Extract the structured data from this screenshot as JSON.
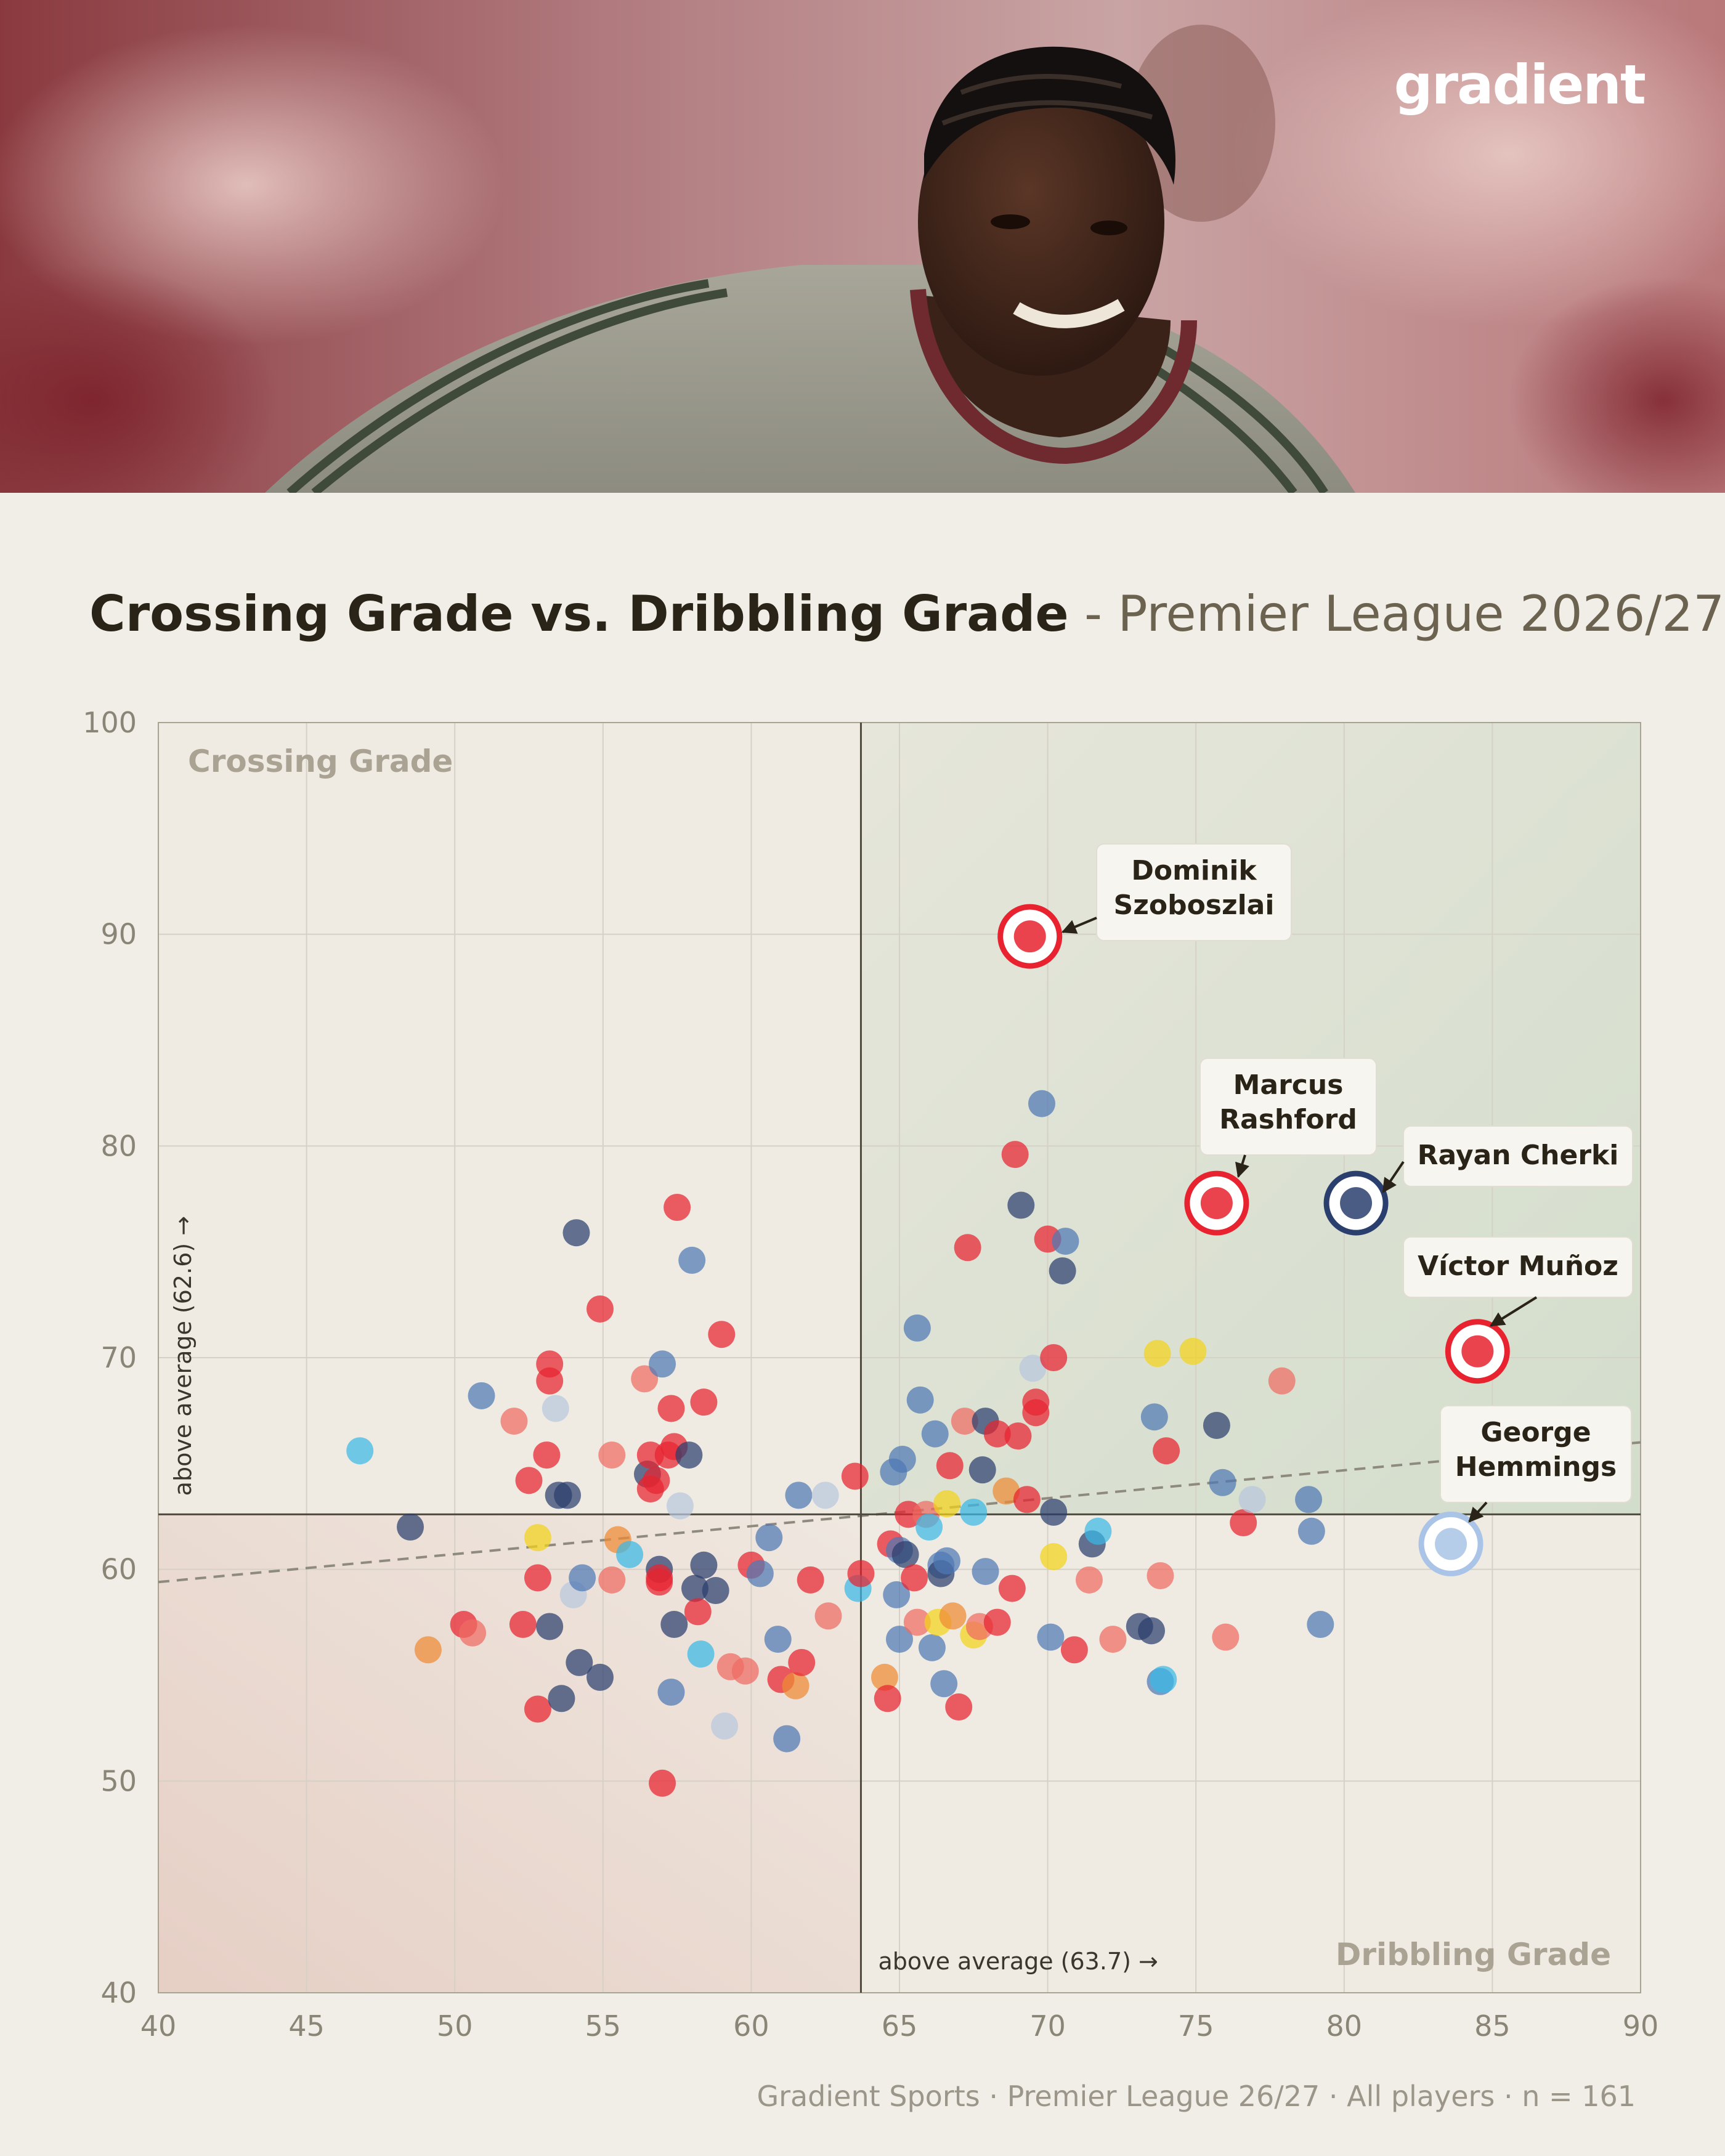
{
  "brand": {
    "logo_text": "gradient"
  },
  "header": {
    "title_main": "Crossing Grade vs. Dribbling Grade",
    "title_sub": " - Premier League 2026/27"
  },
  "footer": {
    "source": "Gradient Sports · Premier League 26/27 · All players · n = 161"
  },
  "colors": {
    "background": "#f1eee7",
    "accent_quadrant": "#d9e1d0",
    "low_quadrant": "#ead6cc",
    "red": "#e8222f",
    "navy": "#2b3f6e",
    "blue": "#4f79b4",
    "light_blue": "#b8c8de",
    "cyan": "#3ab8e6",
    "yellow": "#f2d21b",
    "orange": "#ef8a34",
    "salmon": "#ee6b62"
  },
  "chart_data": {
    "type": "scatter",
    "xlabel": "Dribbling Grade",
    "ylabel": "Crossing Grade",
    "xlim": [
      40,
      90
    ],
    "ylim": [
      40,
      100
    ],
    "xticks": [
      "40",
      "45",
      "50",
      "55",
      "60",
      "65",
      "70",
      "75",
      "80",
      "85",
      "90"
    ],
    "yticks": [
      "40",
      "50",
      "60",
      "70",
      "80",
      "90",
      "100"
    ],
    "grid": true,
    "x_average": {
      "value": 63.7,
      "label": "above average (63.7) →"
    },
    "y_average": {
      "value": 62.6,
      "label": "above average (62.6) →"
    },
    "trend_line": {
      "style": "dashed",
      "from": [
        40,
        59.4
      ],
      "to": [
        90,
        66.0
      ]
    },
    "highlighted": [
      {
        "name": "Dominik Szoboszlai",
        "label_lines": [
          "Dominik",
          "Szoboszlai"
        ],
        "x": 69.4,
        "y": 89.9,
        "badge": "liverpool-badge",
        "badge_color": "#e8222f"
      },
      {
        "name": "Marcus Rashford",
        "label_lines": [
          "Marcus",
          "Rashford"
        ],
        "x": 75.7,
        "y": 77.3,
        "badge": "man-united-badge",
        "badge_color": "#e8222f"
      },
      {
        "name": "Rayan Cherki",
        "label_lines": [
          "Rayan Cherki"
        ],
        "x": 80.4,
        "y": 77.3,
        "badge": "man-city-badge",
        "badge_color": "#2b3f6e"
      },
      {
        "name": "Víctor Muñoz",
        "label_lines": [
          "Víctor Muñoz"
        ],
        "x": 84.5,
        "y": 70.3,
        "badge": "liverpool-badge",
        "badge_color": "#e8222f"
      },
      {
        "name": "George Hemmings",
        "label_lines": [
          "George",
          "Hemmings"
        ],
        "x": 83.6,
        "y": 61.2,
        "badge": "aston-villa-badge",
        "badge_color": "#a9c4e6"
      }
    ],
    "points": [
      {
        "x": 46.8,
        "y": 65.6,
        "c": "cyan"
      },
      {
        "x": 48.5,
        "y": 62.0,
        "c": "navy"
      },
      {
        "x": 49.1,
        "y": 56.2,
        "c": "orange"
      },
      {
        "x": 50.3,
        "y": 57.4,
        "c": "red"
      },
      {
        "x": 50.6,
        "y": 57.0,
        "c": "salmon"
      },
      {
        "x": 50.9,
        "y": 68.2,
        "c": "blue"
      },
      {
        "x": 52.0,
        "y": 67.0,
        "c": "salmon"
      },
      {
        "x": 52.3,
        "y": 57.4,
        "c": "red"
      },
      {
        "x": 52.5,
        "y": 64.2,
        "c": "red"
      },
      {
        "x": 52.8,
        "y": 59.6,
        "c": "red"
      },
      {
        "x": 52.8,
        "y": 61.5,
        "c": "yellow"
      },
      {
        "x": 52.8,
        "y": 53.4,
        "c": "red"
      },
      {
        "x": 53.1,
        "y": 65.4,
        "c": "red"
      },
      {
        "x": 53.2,
        "y": 69.7,
        "c": "red"
      },
      {
        "x": 53.2,
        "y": 68.9,
        "c": "red"
      },
      {
        "x": 53.2,
        "y": 57.3,
        "c": "navy"
      },
      {
        "x": 53.4,
        "y": 67.6,
        "c": "light_blue"
      },
      {
        "x": 53.5,
        "y": 63.5,
        "c": "navy"
      },
      {
        "x": 53.6,
        "y": 53.9,
        "c": "navy"
      },
      {
        "x": 53.8,
        "y": 63.5,
        "c": "navy"
      },
      {
        "x": 54.0,
        "y": 58.8,
        "c": "light_blue"
      },
      {
        "x": 54.1,
        "y": 75.9,
        "c": "navy"
      },
      {
        "x": 54.2,
        "y": 55.6,
        "c": "navy"
      },
      {
        "x": 54.3,
        "y": 59.6,
        "c": "blue"
      },
      {
        "x": 54.9,
        "y": 54.9,
        "c": "navy"
      },
      {
        "x": 54.9,
        "y": 72.3,
        "c": "red"
      },
      {
        "x": 55.3,
        "y": 65.4,
        "c": "salmon"
      },
      {
        "x": 55.3,
        "y": 59.5,
        "c": "salmon"
      },
      {
        "x": 55.5,
        "y": 61.4,
        "c": "orange"
      },
      {
        "x": 55.9,
        "y": 60.7,
        "c": "cyan"
      },
      {
        "x": 56.4,
        "y": 69.0,
        "c": "salmon"
      },
      {
        "x": 56.5,
        "y": 64.5,
        "c": "navy"
      },
      {
        "x": 56.6,
        "y": 63.8,
        "c": "red"
      },
      {
        "x": 56.6,
        "y": 65.4,
        "c": "red"
      },
      {
        "x": 56.8,
        "y": 64.2,
        "c": "red"
      },
      {
        "x": 56.9,
        "y": 60.0,
        "c": "navy"
      },
      {
        "x": 56.9,
        "y": 59.6,
        "c": "red"
      },
      {
        "x": 56.9,
        "y": 59.4,
        "c": "red"
      },
      {
        "x": 57.0,
        "y": 69.7,
        "c": "blue"
      },
      {
        "x": 57.0,
        "y": 49.9,
        "c": "red"
      },
      {
        "x": 57.2,
        "y": 65.4,
        "c": "red"
      },
      {
        "x": 57.3,
        "y": 67.6,
        "c": "red"
      },
      {
        "x": 57.3,
        "y": 54.2,
        "c": "blue"
      },
      {
        "x": 57.4,
        "y": 57.4,
        "c": "navy"
      },
      {
        "x": 57.4,
        "y": 65.8,
        "c": "red"
      },
      {
        "x": 57.5,
        "y": 77.1,
        "c": "red"
      },
      {
        "x": 57.6,
        "y": 63.0,
        "c": "light_blue"
      },
      {
        "x": 57.9,
        "y": 65.4,
        "c": "navy"
      },
      {
        "x": 58.0,
        "y": 74.6,
        "c": "blue"
      },
      {
        "x": 58.1,
        "y": 59.1,
        "c": "navy"
      },
      {
        "x": 58.2,
        "y": 58.0,
        "c": "red"
      },
      {
        "x": 58.3,
        "y": 56.0,
        "c": "cyan"
      },
      {
        "x": 58.4,
        "y": 60.2,
        "c": "navy"
      },
      {
        "x": 58.4,
        "y": 67.9,
        "c": "red"
      },
      {
        "x": 58.8,
        "y": 59.0,
        "c": "navy"
      },
      {
        "x": 59.0,
        "y": 71.1,
        "c": "red"
      },
      {
        "x": 59.1,
        "y": 52.6,
        "c": "light_blue"
      },
      {
        "x": 59.3,
        "y": 55.4,
        "c": "salmon"
      },
      {
        "x": 59.8,
        "y": 55.2,
        "c": "salmon"
      },
      {
        "x": 60.0,
        "y": 60.2,
        "c": "red"
      },
      {
        "x": 60.3,
        "y": 59.8,
        "c": "blue"
      },
      {
        "x": 60.6,
        "y": 61.5,
        "c": "blue"
      },
      {
        "x": 60.9,
        "y": 56.7,
        "c": "blue"
      },
      {
        "x": 61.0,
        "y": 54.8,
        "c": "red"
      },
      {
        "x": 61.2,
        "y": 52.0,
        "c": "blue"
      },
      {
        "x": 61.5,
        "y": 54.5,
        "c": "orange"
      },
      {
        "x": 61.6,
        "y": 63.5,
        "c": "blue"
      },
      {
        "x": 61.7,
        "y": 55.6,
        "c": "red"
      },
      {
        "x": 62.0,
        "y": 59.5,
        "c": "red"
      },
      {
        "x": 62.5,
        "y": 63.5,
        "c": "light_blue"
      },
      {
        "x": 62.6,
        "y": 57.8,
        "c": "salmon"
      },
      {
        "x": 63.5,
        "y": 64.4,
        "c": "red"
      },
      {
        "x": 63.6,
        "y": 59.1,
        "c": "cyan"
      },
      {
        "x": 63.7,
        "y": 59.8,
        "c": "red"
      },
      {
        "x": 64.5,
        "y": 54.9,
        "c": "orange"
      },
      {
        "x": 64.6,
        "y": 53.9,
        "c": "red"
      },
      {
        "x": 64.7,
        "y": 61.2,
        "c": "red"
      },
      {
        "x": 64.8,
        "y": 64.6,
        "c": "blue"
      },
      {
        "x": 64.9,
        "y": 58.8,
        "c": "blue"
      },
      {
        "x": 65.0,
        "y": 60.9,
        "c": "blue"
      },
      {
        "x": 65.0,
        "y": 56.7,
        "c": "blue"
      },
      {
        "x": 65.1,
        "y": 65.2,
        "c": "blue"
      },
      {
        "x": 65.2,
        "y": 60.7,
        "c": "navy"
      },
      {
        "x": 65.3,
        "y": 62.6,
        "c": "red"
      },
      {
        "x": 65.5,
        "y": 59.6,
        "c": "red"
      },
      {
        "x": 65.6,
        "y": 57.5,
        "c": "salmon"
      },
      {
        "x": 65.6,
        "y": 71.4,
        "c": "blue"
      },
      {
        "x": 65.7,
        "y": 68.0,
        "c": "blue"
      },
      {
        "x": 65.9,
        "y": 62.6,
        "c": "salmon"
      },
      {
        "x": 66.0,
        "y": 62.0,
        "c": "cyan"
      },
      {
        "x": 66.1,
        "y": 56.3,
        "c": "blue"
      },
      {
        "x": 66.2,
        "y": 66.4,
        "c": "blue"
      },
      {
        "x": 66.3,
        "y": 57.5,
        "c": "yellow"
      },
      {
        "x": 66.4,
        "y": 60.2,
        "c": "blue"
      },
      {
        "x": 66.4,
        "y": 59.8,
        "c": "navy"
      },
      {
        "x": 66.5,
        "y": 54.6,
        "c": "blue"
      },
      {
        "x": 66.6,
        "y": 63.1,
        "c": "yellow"
      },
      {
        "x": 66.6,
        "y": 60.4,
        "c": "blue"
      },
      {
        "x": 66.7,
        "y": 64.9,
        "c": "red"
      },
      {
        "x": 66.8,
        "y": 57.8,
        "c": "orange"
      },
      {
        "x": 67.0,
        "y": 53.5,
        "c": "red"
      },
      {
        "x": 67.2,
        "y": 67.0,
        "c": "salmon"
      },
      {
        "x": 67.3,
        "y": 75.2,
        "c": "red"
      },
      {
        "x": 67.5,
        "y": 62.7,
        "c": "cyan"
      },
      {
        "x": 67.5,
        "y": 56.9,
        "c": "yellow"
      },
      {
        "x": 67.7,
        "y": 57.3,
        "c": "salmon"
      },
      {
        "x": 67.8,
        "y": 64.7,
        "c": "navy"
      },
      {
        "x": 67.9,
        "y": 67.0,
        "c": "navy"
      },
      {
        "x": 67.9,
        "y": 59.9,
        "c": "blue"
      },
      {
        "x": 68.3,
        "y": 57.5,
        "c": "red"
      },
      {
        "x": 68.3,
        "y": 66.4,
        "c": "red"
      },
      {
        "x": 68.6,
        "y": 63.7,
        "c": "orange"
      },
      {
        "x": 68.8,
        "y": 59.1,
        "c": "red"
      },
      {
        "x": 68.9,
        "y": 79.6,
        "c": "red"
      },
      {
        "x": 69.0,
        "y": 66.3,
        "c": "red"
      },
      {
        "x": 69.1,
        "y": 77.2,
        "c": "navy"
      },
      {
        "x": 69.3,
        "y": 63.3,
        "c": "red"
      },
      {
        "x": 69.5,
        "y": 69.5,
        "c": "light_blue"
      },
      {
        "x": 69.6,
        "y": 67.9,
        "c": "red"
      },
      {
        "x": 69.6,
        "y": 67.4,
        "c": "red"
      },
      {
        "x": 69.8,
        "y": 82.0,
        "c": "blue"
      },
      {
        "x": 70.0,
        "y": 75.6,
        "c": "red"
      },
      {
        "x": 70.1,
        "y": 56.8,
        "c": "blue"
      },
      {
        "x": 70.2,
        "y": 60.6,
        "c": "yellow"
      },
      {
        "x": 70.2,
        "y": 62.7,
        "c": "navy"
      },
      {
        "x": 70.2,
        "y": 70.0,
        "c": "red"
      },
      {
        "x": 70.5,
        "y": 74.1,
        "c": "navy"
      },
      {
        "x": 70.6,
        "y": 75.5,
        "c": "blue"
      },
      {
        "x": 70.9,
        "y": 56.2,
        "c": "red"
      },
      {
        "x": 71.4,
        "y": 59.5,
        "c": "salmon"
      },
      {
        "x": 71.5,
        "y": 61.2,
        "c": "navy"
      },
      {
        "x": 71.7,
        "y": 61.8,
        "c": "cyan"
      },
      {
        "x": 72.2,
        "y": 56.7,
        "c": "salmon"
      },
      {
        "x": 73.1,
        "y": 57.3,
        "c": "navy"
      },
      {
        "x": 73.5,
        "y": 57.1,
        "c": "navy"
      },
      {
        "x": 73.6,
        "y": 67.2,
        "c": "blue"
      },
      {
        "x": 73.7,
        "y": 70.2,
        "c": "yellow"
      },
      {
        "x": 73.8,
        "y": 59.7,
        "c": "salmon"
      },
      {
        "x": 73.8,
        "y": 54.7,
        "c": "blue"
      },
      {
        "x": 73.9,
        "y": 54.8,
        "c": "cyan"
      },
      {
        "x": 74.0,
        "y": 65.6,
        "c": "red"
      },
      {
        "x": 74.9,
        "y": 70.3,
        "c": "yellow"
      },
      {
        "x": 75.7,
        "y": 66.8,
        "c": "navy"
      },
      {
        "x": 75.9,
        "y": 64.1,
        "c": "blue"
      },
      {
        "x": 76.0,
        "y": 56.8,
        "c": "salmon"
      },
      {
        "x": 76.6,
        "y": 62.2,
        "c": "red"
      },
      {
        "x": 76.9,
        "y": 63.3,
        "c": "light_blue"
      },
      {
        "x": 77.9,
        "y": 68.9,
        "c": "salmon"
      },
      {
        "x": 78.8,
        "y": 63.3,
        "c": "blue"
      },
      {
        "x": 78.9,
        "y": 61.8,
        "c": "blue"
      },
      {
        "x": 79.2,
        "y": 57.4,
        "c": "blue"
      }
    ]
  }
}
